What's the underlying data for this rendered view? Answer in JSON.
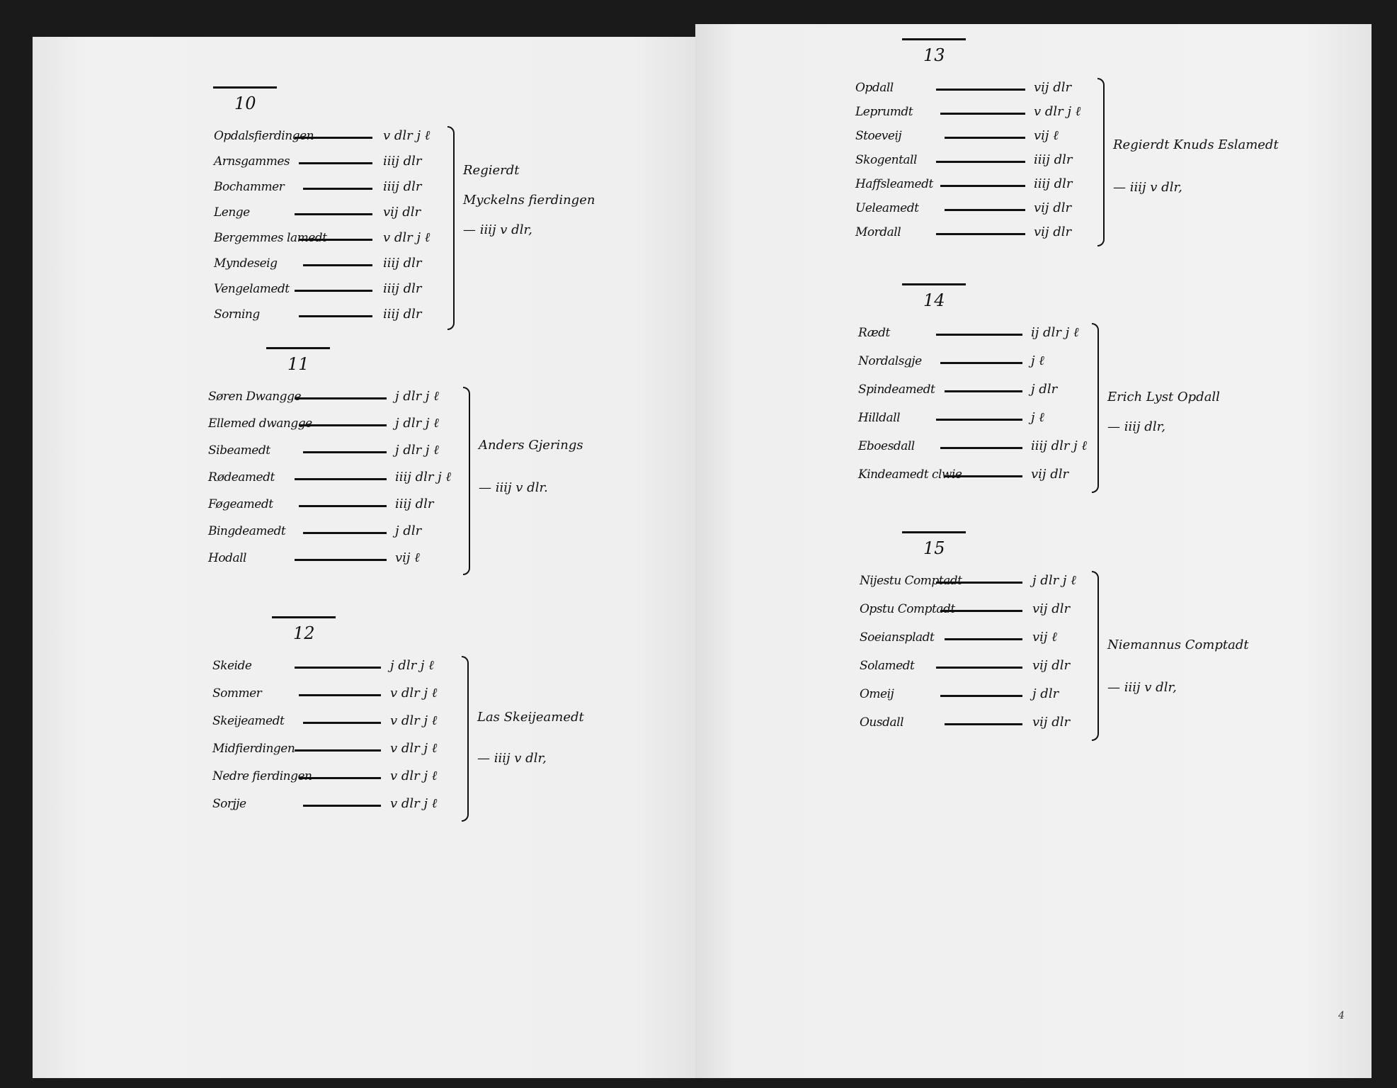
{
  "left_page": {
    "sections": [
      {
        "number": "10",
        "entries": [
          {
            "name": "Opdalsfierdingen",
            "amount": "v dlr j ℓ"
          },
          {
            "name": "Arnsgammes",
            "amount": "iiij dlr"
          },
          {
            "name": "Bochammer",
            "amount": "iiij dlr"
          },
          {
            "name": "Lenge",
            "amount": "vij dlr"
          },
          {
            "name": "Bergemmes lamedt",
            "amount": "v dlr j ℓ"
          },
          {
            "name": "Myndeseig",
            "amount": "iiij dlr"
          },
          {
            "name": "Vengelamedt",
            "amount": "iiij dlr"
          },
          {
            "name": "Sorning",
            "amount": "iiij dlr"
          }
        ],
        "note": [
          "Regierdt",
          "Myckelns fierdingen",
          "— iiij v dlr,"
        ]
      },
      {
        "number": "11",
        "entries": [
          {
            "name": "Søren Dwangge",
            "amount": "j dlr j ℓ"
          },
          {
            "name": "Ellemed dwangge",
            "amount": "j dlr j ℓ"
          },
          {
            "name": "Sibeamedt",
            "amount": "j dlr j ℓ"
          },
          {
            "name": "Rødeamedt",
            "amount": "iiij dlr j ℓ"
          },
          {
            "name": "Føgeamedt",
            "amount": "iiij dlr"
          },
          {
            "name": "Bingdeamedt",
            "amount": "j dlr"
          },
          {
            "name": "Hodall",
            "amount": "vij ℓ"
          }
        ],
        "note": [
          "Anders Gjerings",
          "— iiij v dlr."
        ]
      },
      {
        "number": "12",
        "entries": [
          {
            "name": "Skeide",
            "amount": "j dlr j ℓ"
          },
          {
            "name": "Sommer",
            "amount": "v dlr j ℓ"
          },
          {
            "name": "Skeijeamedt",
            "amount": "v dlr j ℓ"
          },
          {
            "name": "Midfierdingen",
            "amount": "v dlr j ℓ"
          },
          {
            "name": "Nedre fierdingen",
            "amount": "v dlr j ℓ"
          },
          {
            "name": "Sorjje",
            "amount": "v dlr j ℓ"
          }
        ],
        "note": [
          "Las Skeijeamedt",
          "— iiij v dlr,"
        ]
      }
    ]
  },
  "right_page": {
    "sections": [
      {
        "number": "13",
        "entries": [
          {
            "name": "Opdall",
            "amount": "vij dlr"
          },
          {
            "name": "Leprumdt",
            "amount": "v dlr j ℓ"
          },
          {
            "name": "Stoeveij",
            "amount": "vij ℓ"
          },
          {
            "name": "Skogentall",
            "amount": "iiij dlr"
          },
          {
            "name": "Haffsleamedt",
            "amount": "iiij dlr"
          },
          {
            "name": "Ueleamedt",
            "amount": "vij dlr"
          },
          {
            "name": "Mordall",
            "amount": "vij dlr"
          }
        ],
        "note": [
          "Regierdt Knuds Eslamedt",
          "— iiij v dlr,"
        ]
      },
      {
        "number": "14",
        "entries": [
          {
            "name": "Rædt",
            "amount": "ij dlr j ℓ"
          },
          {
            "name": "Nordalsgje",
            "amount": "j ℓ"
          },
          {
            "name": "Spindeamedt",
            "amount": "j dlr"
          },
          {
            "name": "Hilldall",
            "amount": "j ℓ"
          },
          {
            "name": "Eboesdall",
            "amount": "iiij dlr j ℓ"
          },
          {
            "name": "Kindeamedt clwie",
            "amount": "vij dlr"
          }
        ],
        "note": [
          "Erich Lyst Opdall",
          "— iiij dlr,"
        ]
      },
      {
        "number": "15",
        "entries": [
          {
            "name": "Nijestu Comptadt",
            "amount": "j dlr j ℓ"
          },
          {
            "name": "Opstu Comptadt",
            "amount": "vij dlr"
          },
          {
            "name": "Soeianspladt",
            "amount": "vij ℓ"
          },
          {
            "name": "Solamedt",
            "amount": "vij dlr"
          },
          {
            "name": "Omeij",
            "amount": "j dlr"
          },
          {
            "name": "Ousdall",
            "amount": "vij dlr"
          }
        ],
        "note": [
          "Niemannus Comptadt",
          "— iiij v dlr,"
        ]
      }
    ]
  },
  "page_number": "4"
}
